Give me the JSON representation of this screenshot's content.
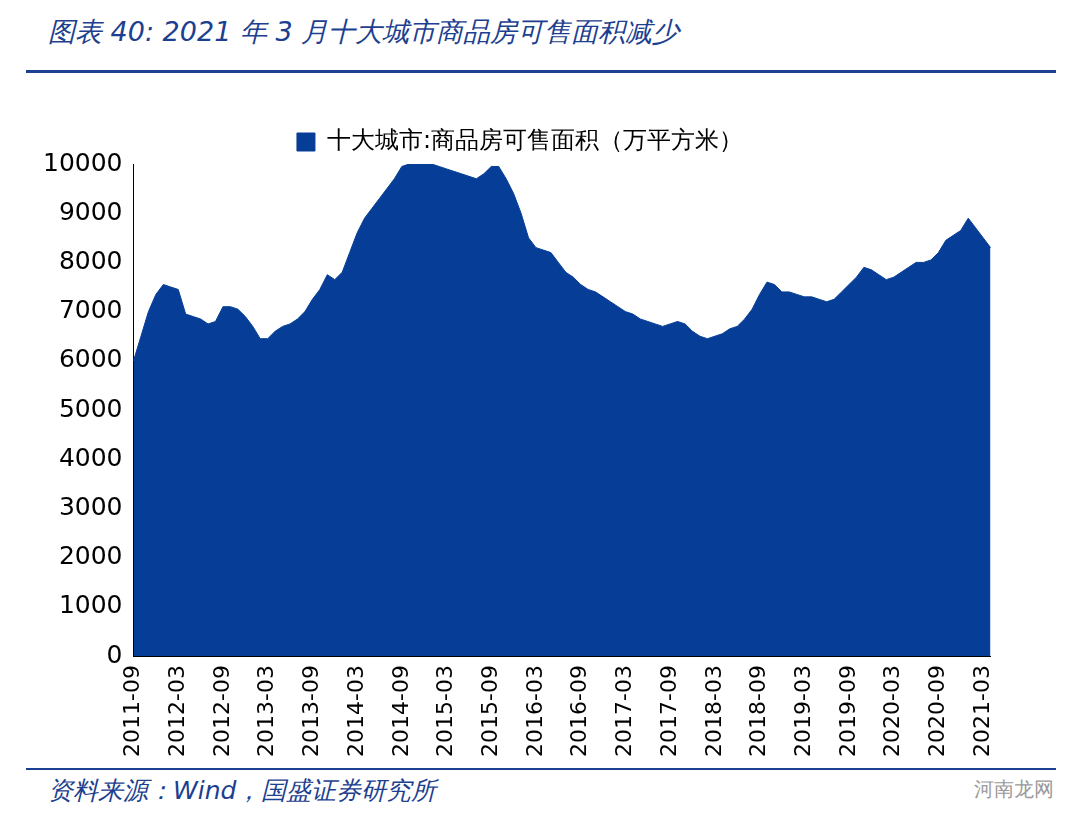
{
  "header": {
    "title": "图表 40: 2021 年 3 月十大城市商品房可售面积减少"
  },
  "footer": {
    "source": "资料来源：Wind，国盛证券研究所",
    "watermark": "河南龙网"
  },
  "chart_data": {
    "type": "area",
    "categories": [
      "2011-09",
      null,
      null,
      null,
      null,
      null,
      "2012-03",
      null,
      null,
      null,
      null,
      null,
      "2012-09",
      null,
      null,
      null,
      null,
      null,
      "2013-03",
      null,
      null,
      null,
      null,
      null,
      "2013-09",
      null,
      null,
      null,
      null,
      null,
      "2014-03",
      null,
      null,
      null,
      null,
      null,
      "2014-09",
      null,
      null,
      null,
      null,
      null,
      "2015-03",
      null,
      null,
      null,
      null,
      null,
      "2015-09",
      null,
      null,
      null,
      null,
      null,
      "2016-03",
      null,
      null,
      null,
      null,
      null,
      "2016-09",
      null,
      null,
      null,
      null,
      null,
      "2017-03",
      null,
      null,
      null,
      null,
      null,
      "2017-09",
      null,
      null,
      null,
      null,
      null,
      "2018-03",
      null,
      null,
      null,
      null,
      null,
      "2018-09",
      null,
      null,
      null,
      null,
      null,
      "2019-03",
      null,
      null,
      null,
      null,
      null,
      "2019-09",
      null,
      null,
      null,
      null,
      null,
      "2020-03",
      null,
      null,
      null,
      null,
      null,
      "2020-09",
      null,
      null,
      null,
      null,
      null,
      "2021-03",
      null
    ],
    "series": [
      {
        "name": "十大城市:商品房可售面积（万平方米）",
        "color": "#063e97",
        "values": [
          6000,
          6500,
          7000,
          7350,
          7550,
          7500,
          7450,
          6950,
          6900,
          6850,
          6750,
          6800,
          7100,
          7100,
          7050,
          6900,
          6700,
          6450,
          6450,
          6600,
          6700,
          6750,
          6850,
          7000,
          7250,
          7450,
          7750,
          7650,
          7800,
          8200,
          8600,
          8900,
          9100,
          9300,
          9500,
          9700,
          9950,
          10000,
          10000,
          10000,
          10000,
          9950,
          9900,
          9850,
          9800,
          9750,
          9700,
          9800,
          9950,
          9950,
          9700,
          9400,
          9000,
          8500,
          8300,
          8250,
          8200,
          8000,
          7800,
          7700,
          7550,
          7450,
          7400,
          7300,
          7200,
          7100,
          7000,
          6950,
          6850,
          6800,
          6750,
          6700,
          6750,
          6800,
          6750,
          6600,
          6500,
          6450,
          6500,
          6550,
          6650,
          6700,
          6850,
          7050,
          7350,
          7600,
          7550,
          7400,
          7400,
          7350,
          7300,
          7300,
          7250,
          7200,
          7250,
          7400,
          7550,
          7700,
          7900,
          7850,
          7750,
          7650,
          7700,
          7800,
          7900,
          8000,
          8000,
          8050,
          8200,
          8450,
          8550,
          8650,
          8900,
          8700,
          8500,
          8300
        ]
      }
    ],
    "ylim": [
      0,
      10000
    ],
    "yticks": [
      0,
      1000,
      2000,
      3000,
      4000,
      5000,
      6000,
      7000,
      8000,
      9000,
      10000
    ],
    "grid": false,
    "legend": "top"
  }
}
